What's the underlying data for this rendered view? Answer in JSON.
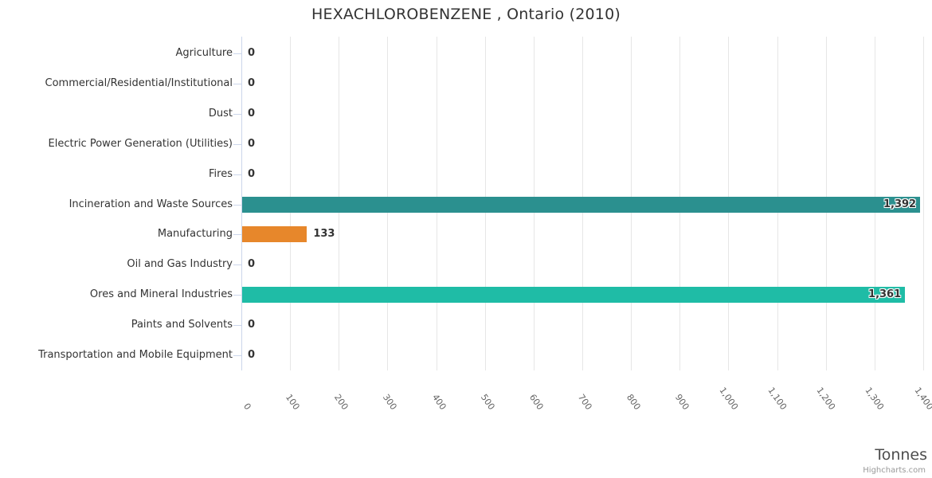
{
  "chart": {
    "title": "HEXACHLOROBENZENE , Ontario (2010)",
    "axis_title": "Tonnes",
    "credits": "Highcharts.com"
  },
  "chart_data": {
    "type": "bar",
    "orientation": "horizontal",
    "title": "HEXACHLOROBENZENE , Ontario (2010)",
    "xlabel": "Tonnes",
    "ylabel": "",
    "categories": [
      "Agriculture",
      "Commercial/Residential/Institutional",
      "Dust",
      "Electric Power Generation (Utilities)",
      "Fires",
      "Incineration and Waste Sources",
      "Manufacturing",
      "Oil and Gas Industry",
      "Ores and Mineral Industries",
      "Paints and Solvents",
      "Transportation and Mobile Equipment"
    ],
    "values": [
      0,
      0,
      0,
      0,
      0,
      1392,
      133,
      0,
      1361,
      0,
      0
    ],
    "value_labels": [
      "0",
      "0",
      "0",
      "0",
      "0",
      "1,392",
      "133",
      "0",
      "1,361",
      "0",
      "0"
    ],
    "point_colors": [
      "#2b908f",
      "#2b908f",
      "#2b908f",
      "#2b908f",
      "#2b908f",
      "#2b908f",
      "#e7872b",
      "#2b908f",
      "#1fbca6",
      "#2b908f",
      "#2b908f"
    ],
    "xlim": [
      0,
      1400
    ],
    "x_ticks": [
      0,
      100,
      200,
      300,
      400,
      500,
      600,
      700,
      800,
      900,
      1000,
      1100,
      1200,
      1300,
      1400
    ],
    "x_tick_labels": [
      "0",
      "100",
      "200",
      "300",
      "400",
      "500",
      "600",
      "700",
      "800",
      "900",
      "1,000",
      "1,100",
      "1,200",
      "1,300",
      "1,400"
    ],
    "grid": true,
    "legend": false,
    "gridline_color": "#e6e6e6",
    "axis_line_color": "#ccd6eb",
    "category_label_color": "#333333",
    "tick_label_color": "#666666"
  }
}
